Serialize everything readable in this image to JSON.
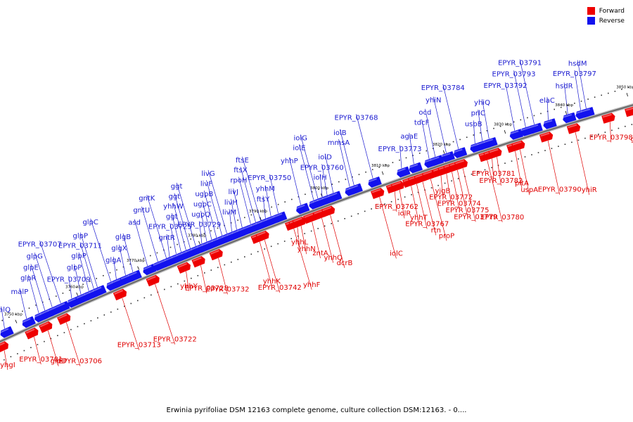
{
  "legend": {
    "forward_label": "Forward",
    "reverse_label": "Reverse",
    "forward_color": "#ff0000",
    "reverse_color": "#0000ff"
  },
  "caption": "Erwinia pyrifoliae DSM 12163 complete genome, culture collection DSM:12163. - 0....",
  "colors": {
    "forward": "#ee0000",
    "reverse": "#1212ee",
    "label_forward": "#e00000",
    "label_reverse": "#1a1ad0"
  },
  "axis": {
    "start_kbp": 3746,
    "end_kbp": 3851,
    "ticks": [
      "3750 kbp",
      "3760 kbp",
      "3770 kbp",
      "3780 kbp",
      "3790 kbp",
      "3800 kbp",
      "3810 kbp",
      "3820 kbp",
      "3830 kbp",
      "3840 kbp",
      "3850 kbp"
    ]
  },
  "forward_genes": [
    [
      "yhgI",
      3746.6
    ],
    [
      "EPYR_03701",
      3751.5
    ],
    [
      "glpD",
      3753.8
    ],
    [
      "EPYR_03706",
      3756.8
    ],
    [
      "EPYR_03713",
      3766.0
    ],
    [
      "EPYR_03722",
      3771.4
    ],
    [
      "yhhY",
      3776.5
    ],
    [
      "EPYR_03728",
      3778.9
    ],
    [
      "EPYR_03732",
      3781.8
    ],
    [
      "yhhK",
      3788.6
    ],
    [
      "EPYR_03742",
      3789.4
    ],
    [
      "yhhF",
      3794.2
    ],
    [
      "yhhL",
      3794.8
    ],
    [
      "yhhN",
      3795.4
    ],
    [
      "zntA",
      3797.2
    ],
    [
      "yhhQ",
      3798.8
    ],
    [
      "dcrB",
      3800.2
    ],
    [
      "iolC",
      3808.3
    ],
    [
      "EPYR_03762",
      3810.8
    ],
    [
      "iolR",
      3811.6
    ],
    [
      "yhhT",
      3813.5
    ],
    [
      "EPYR_03767",
      3814.4
    ],
    [
      "rtn",
      3815.4
    ],
    [
      "proP",
      3816.7
    ],
    [
      "yjgB",
      3818.4
    ],
    [
      "EPYR_03772",
      3819.3
    ],
    [
      "EPYR_03774",
      3820.2
    ],
    [
      "EPYR_03775",
      3821.1
    ],
    [
      "EPYR_03779",
      3822.0
    ],
    [
      "EPYR_03780",
      3826.0
    ],
    [
      "EPYR_03781",
      3826.8
    ],
    [
      "EPYR_03782",
      3827.6
    ],
    [
      "pitA",
      3830.6
    ],
    [
      "uspA",
      3831.4
    ],
    [
      "EPYR_03790",
      3836.0
    ],
    [
      "yhiR",
      3840.5
    ],
    [
      "EPYR_03798",
      3846.2
    ],
    [
      "gor",
      3850.0
    ]
  ],
  "reverse_genes": [
    [
      "malQ",
      3748.0
    ],
    [
      "malP",
      3751.6
    ],
    [
      "glpR",
      3753.6
    ],
    [
      "glpE",
      3754.6
    ],
    [
      "glpG",
      3755.8
    ],
    [
      "EPYR_03707",
      3757.2
    ],
    [
      "EPYR_03709",
      3759.0
    ],
    [
      "glpP",
      3760.5
    ],
    [
      "glpP",
      3761.8
    ],
    [
      "EPYR_03711",
      3762.6
    ],
    [
      "glpP",
      3763.2
    ],
    [
      "glpC",
      3765.4
    ],
    [
      "glgA",
      3766.3
    ],
    [
      "glgX",
      3767.8
    ],
    [
      "glgB",
      3769.0
    ],
    [
      "asd",
      3771.4
    ],
    [
      "gntU",
      3773.1
    ],
    [
      "gntK",
      3774.5
    ],
    [
      "gntR",
      3775.0
    ],
    [
      "EPYR_03725",
      3776.1
    ],
    [
      "ggt",
      3776.9
    ],
    [
      "yhhW",
      3777.7
    ],
    [
      "ggt",
      3778.4
    ],
    [
      "ggt",
      3779.3
    ],
    [
      "EPYR_03729",
      3780.3
    ],
    [
      "ugpQ",
      3781.1
    ],
    [
      "ugpC",
      3781.9
    ],
    [
      "ugpB",
      3782.7
    ],
    [
      "livF",
      3783.6
    ],
    [
      "livG",
      3784.4
    ],
    [
      "livM",
      3785.2
    ],
    [
      "livH",
      3786.0
    ],
    [
      "livJ",
      3786.9
    ],
    [
      "rpoH",
      3788.3
    ],
    [
      "ftsX",
      3789.1
    ],
    [
      "ftsE",
      3789.9
    ],
    [
      "ftsY",
      3790.7
    ],
    [
      "yhhM",
      3791.6
    ],
    [
      "EPYR_03750",
      3792.8
    ],
    [
      "yhhP",
      3796.5
    ],
    [
      "iolE",
      3798.6
    ],
    [
      "iolG",
      3799.3
    ],
    [
      "iolH",
      3800.0
    ],
    [
      "EPYR_03760",
      3800.8
    ],
    [
      "iolD",
      3801.8
    ],
    [
      "mmsA",
      3804.5
    ],
    [
      "iolB",
      3805.2
    ],
    [
      "EPYR_03768",
      3808.3
    ],
    [
      "EPYR_03773",
      3813.0
    ],
    [
      "agaE",
      3815.0
    ],
    [
      "tdcF",
      3817.5
    ],
    [
      "ocd",
      3818.5
    ],
    [
      "yhiN",
      3820.3
    ],
    [
      "EPYR_03784",
      3822.3
    ],
    [
      "uspB",
      3825.0
    ],
    [
      "prlC",
      3826.2
    ],
    [
      "yhiQ",
      3827.3
    ],
    [
      "EPYR_03792",
      3831.5
    ],
    [
      "EPYR_03793",
      3833.3
    ],
    [
      "EPYR_03791",
      3834.7
    ],
    [
      "elaC",
      3837.0
    ],
    [
      "hsdR",
      3840.2
    ],
    [
      "EPYR_03797",
      3842.3
    ],
    [
      "hsdM",
      3843.2
    ]
  ]
}
